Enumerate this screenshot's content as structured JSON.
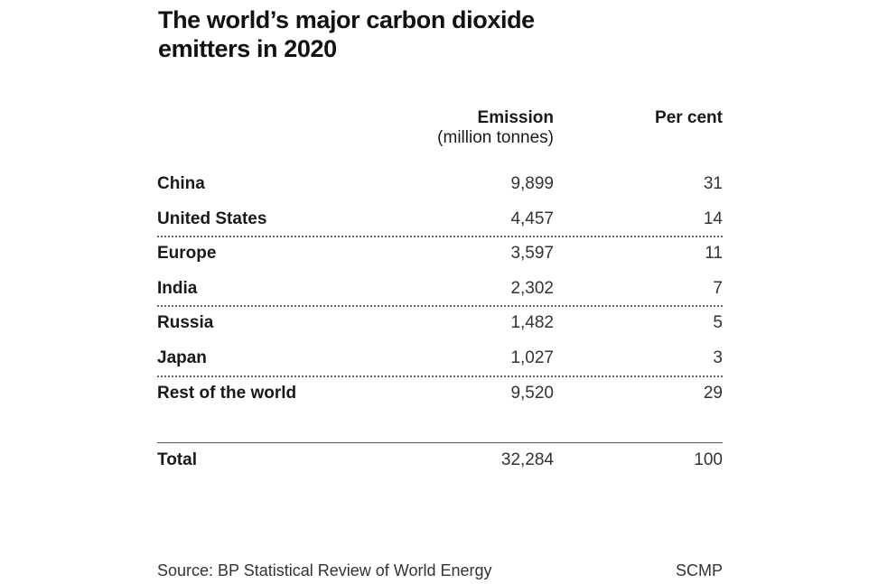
{
  "title": "The world’s major carbon dioxide emitters in 2020",
  "chart_data": {
    "type": "table",
    "title": "The world’s major carbon dioxide emitters in 2020",
    "columns": [
      "",
      "Emission (million tonnes)",
      "Per cent"
    ],
    "header": {
      "emission_line1": "Emission",
      "emission_line2": "(million tonnes)",
      "percent": "Per cent"
    },
    "rows": [
      {
        "name": "China",
        "emission": "9,899",
        "percent": "31"
      },
      {
        "name": "United States",
        "emission": "4,457",
        "percent": "14"
      },
      {
        "name": "Europe",
        "emission": "3,597",
        "percent": "11"
      },
      {
        "name": "India",
        "emission": "2,302",
        "percent": "7"
      },
      {
        "name": "Russia",
        "emission": "1,482",
        "percent": "5"
      },
      {
        "name": "Japan",
        "emission": "1,027",
        "percent": "3"
      },
      {
        "name": "Rest of the world",
        "emission": "9,520",
        "percent": "29"
      }
    ],
    "total": {
      "name": "Total",
      "emission": "32,284",
      "percent": "100"
    }
  },
  "footer": {
    "source": "Source: BP Statistical Review of World Energy",
    "credit": "SCMP"
  }
}
